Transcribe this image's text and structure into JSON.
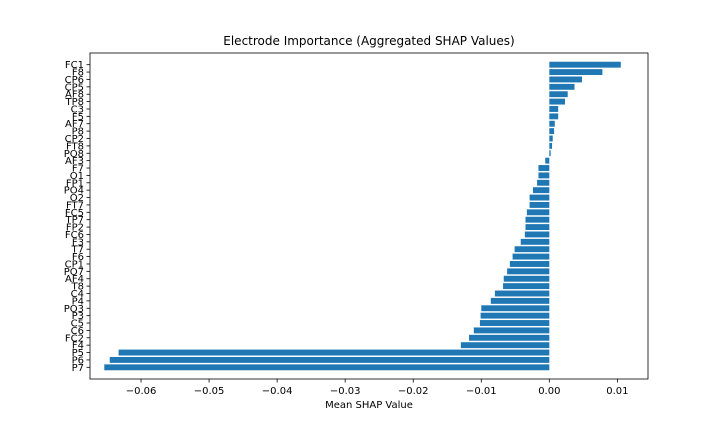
{
  "chart_data": {
    "type": "bar",
    "orientation": "horizontal",
    "title": "Electrode Importance (Aggregated SHAP Values)",
    "xlabel": "Mean SHAP Value",
    "ylabel": "",
    "xlim": [
      -0.0675,
      0.0145
    ],
    "xticks": [
      -0.06,
      -0.05,
      -0.04,
      -0.03,
      -0.02,
      -0.01,
      0.0,
      0.01
    ],
    "xtick_labels": [
      "−0.06",
      "−0.05",
      "−0.04",
      "−0.03",
      "−0.02",
      "−0.01",
      "0.00",
      "0.01"
    ],
    "grid": false,
    "bar_color": "#1f77b4",
    "categories": [
      "FC1",
      "F8",
      "CP6",
      "CP5",
      "AF8",
      "TP8",
      "C3",
      "F5",
      "AF7",
      "P8",
      "CP2",
      "FT8",
      "PO8",
      "AF3",
      "F7",
      "O1",
      "FP1",
      "PO4",
      "O2",
      "FT7",
      "FC5",
      "TP7",
      "FP2",
      "FC6",
      "F3",
      "T7",
      "F6",
      "CP1",
      "PO7",
      "AF4",
      "T8",
      "C4",
      "P4",
      "PO3",
      "P3",
      "C5",
      "C6",
      "FC2",
      "F4",
      "P5",
      "P6",
      "P7"
    ],
    "values": [
      0.0105,
      0.0078,
      0.0048,
      0.0037,
      0.0027,
      0.0023,
      0.0013,
      0.0013,
      0.0008,
      0.0007,
      0.0005,
      0.0004,
      0.0002,
      -0.0006,
      -0.0016,
      -0.0016,
      -0.0018,
      -0.0024,
      -0.0029,
      -0.0029,
      -0.0033,
      -0.0035,
      -0.0035,
      -0.0036,
      -0.0042,
      -0.0051,
      -0.0054,
      -0.0058,
      -0.0062,
      -0.0067,
      -0.0068,
      -0.008,
      -0.0086,
      -0.01,
      -0.0101,
      -0.0102,
      -0.0111,
      -0.0118,
      -0.013,
      -0.0633,
      -0.0646,
      -0.0654
    ]
  }
}
